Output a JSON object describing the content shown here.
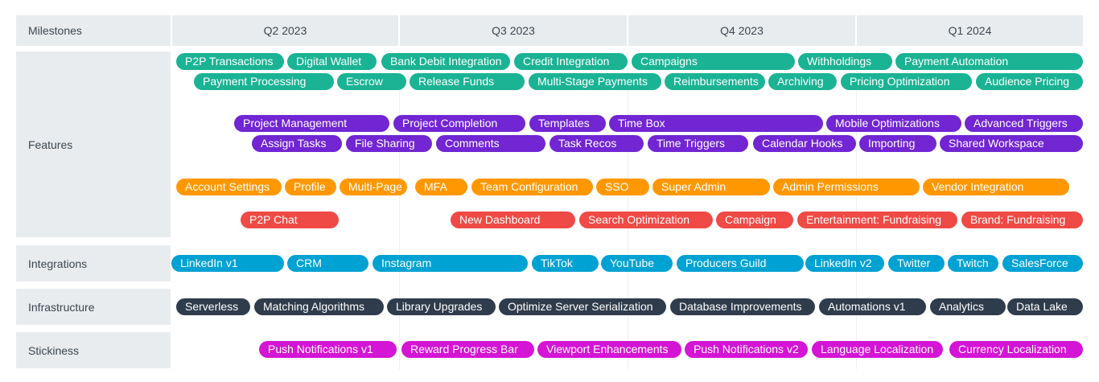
{
  "header": {
    "milestones_label": "Milestones",
    "quarters": [
      "Q2 2023",
      "Q3 2023",
      "Q4 2023",
      "Q1 2024"
    ]
  },
  "colors": {
    "green": "#1ab394",
    "purple": "#7125d3",
    "orange": "#ff9800",
    "red": "#ef4a45",
    "blue": "#00a2d3",
    "navy": "#2f3c4c",
    "magenta": "#d415d5"
  },
  "lanes": {
    "features": "Features",
    "integrations": "Integrations",
    "infrastructure": "Infrastructure",
    "stickiness": "Stickiness"
  },
  "items": [
    {
      "label": "P2P Transactions",
      "color": "green"
    },
    {
      "label": "Digital Wallet",
      "color": "green"
    },
    {
      "label": "Bank Debit Integration",
      "color": "green"
    },
    {
      "label": "Credit Integration",
      "color": "green"
    },
    {
      "label": "Campaigns",
      "color": "green"
    },
    {
      "label": "Withholdings",
      "color": "green"
    },
    {
      "label": "Payment Automation",
      "color": "green"
    },
    {
      "label": "Payment Processing",
      "color": "green"
    },
    {
      "label": "Escrow",
      "color": "green"
    },
    {
      "label": "Release Funds",
      "color": "green"
    },
    {
      "label": "Multi-Stage Payments",
      "color": "green"
    },
    {
      "label": "Reimbursements",
      "color": "green"
    },
    {
      "label": "Archiving",
      "color": "green"
    },
    {
      "label": "Pricing Optimization",
      "color": "green"
    },
    {
      "label": "Audience Pricing",
      "color": "green"
    },
    {
      "label": "Project Management",
      "color": "purple"
    },
    {
      "label": "Project Completion",
      "color": "purple"
    },
    {
      "label": "Templates",
      "color": "purple"
    },
    {
      "label": "Time Box",
      "color": "purple"
    },
    {
      "label": "Mobile Optimizations",
      "color": "purple"
    },
    {
      "label": "Advanced Triggers",
      "color": "purple"
    },
    {
      "label": "Assign Tasks",
      "color": "purple"
    },
    {
      "label": "File Sharing",
      "color": "purple"
    },
    {
      "label": "Comments",
      "color": "purple"
    },
    {
      "label": "Task Recos",
      "color": "purple"
    },
    {
      "label": "Time Triggers",
      "color": "purple"
    },
    {
      "label": "Calendar Hooks",
      "color": "purple"
    },
    {
      "label": "Importing",
      "color": "purple"
    },
    {
      "label": "Shared Workspace",
      "color": "purple"
    },
    {
      "label": "Account Settings",
      "color": "orange"
    },
    {
      "label": "Profile",
      "color": "orange"
    },
    {
      "label": "Multi-Page",
      "color": "orange"
    },
    {
      "label": "MFA",
      "color": "orange"
    },
    {
      "label": "Team Configuration",
      "color": "orange"
    },
    {
      "label": "SSO",
      "color": "orange"
    },
    {
      "label": "Super Admin",
      "color": "orange"
    },
    {
      "label": "Admin Permissions",
      "color": "orange"
    },
    {
      "label": "Vendor Integration",
      "color": "orange"
    },
    {
      "label": "P2P Chat",
      "color": "red"
    },
    {
      "label": "New Dashboard",
      "color": "red"
    },
    {
      "label": "Search Optimization",
      "color": "red"
    },
    {
      "label": "Campaign",
      "color": "red"
    },
    {
      "label": "Entertainment: Fundraising",
      "color": "red"
    },
    {
      "label": "Brand: Fundraising",
      "color": "red"
    },
    {
      "label": "LinkedIn v1",
      "color": "blue"
    },
    {
      "label": "CRM",
      "color": "blue"
    },
    {
      "label": "Instagram",
      "color": "blue"
    },
    {
      "label": "TikTok",
      "color": "blue"
    },
    {
      "label": "YouTube",
      "color": "blue"
    },
    {
      "label": "Producers Guild",
      "color": "blue"
    },
    {
      "label": "LinkedIn v2",
      "color": "blue"
    },
    {
      "label": "Twitter",
      "color": "blue"
    },
    {
      "label": "Twitch",
      "color": "blue"
    },
    {
      "label": "SalesForce",
      "color": "blue"
    },
    {
      "label": "Serverless",
      "color": "navy"
    },
    {
      "label": "Matching Algorithms",
      "color": "navy"
    },
    {
      "label": "Library Upgrades",
      "color": "navy"
    },
    {
      "label": "Optimize Server Serialization",
      "color": "navy"
    },
    {
      "label": "Database Improvements",
      "color": "navy"
    },
    {
      "label": "Automations v1",
      "color": "navy"
    },
    {
      "label": "Analytics",
      "color": "navy"
    },
    {
      "label": "Data Lake",
      "color": "navy"
    },
    {
      "label": "Push Notifications v1",
      "color": "magenta"
    },
    {
      "label": "Reward Progress Bar",
      "color": "magenta"
    },
    {
      "label": "Viewport Enhancements",
      "color": "magenta"
    },
    {
      "label": "Push Notifications v2",
      "color": "magenta"
    },
    {
      "label": "Language Localization",
      "color": "magenta"
    },
    {
      "label": "Currency Localization",
      "color": "magenta"
    }
  ]
}
